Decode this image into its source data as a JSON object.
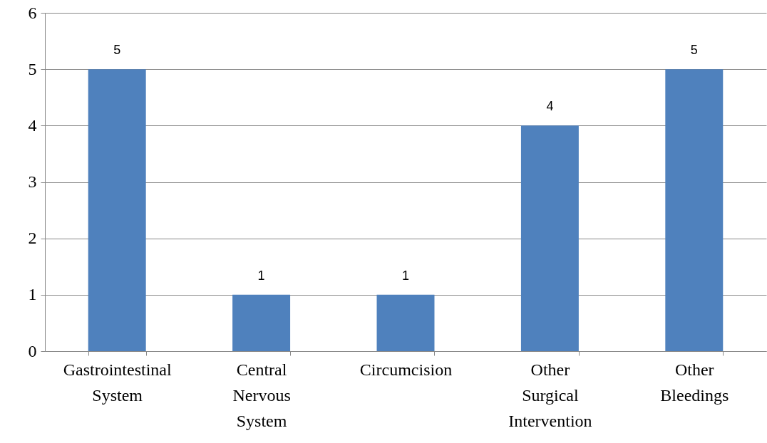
{
  "chart_data": {
    "type": "bar",
    "categories": [
      "Gastrointestinal System",
      "Central Nervous System",
      "Circumcision",
      "Other Surgical Intervention",
      "Other Bleedings"
    ],
    "values": [
      5,
      1,
      1,
      4,
      5
    ],
    "color": "#4f81bd",
    "ylim": [
      0,
      6
    ],
    "yticks": [
      0,
      1,
      2,
      3,
      4,
      5,
      6
    ],
    "grid": "y",
    "data_labels": true
  }
}
